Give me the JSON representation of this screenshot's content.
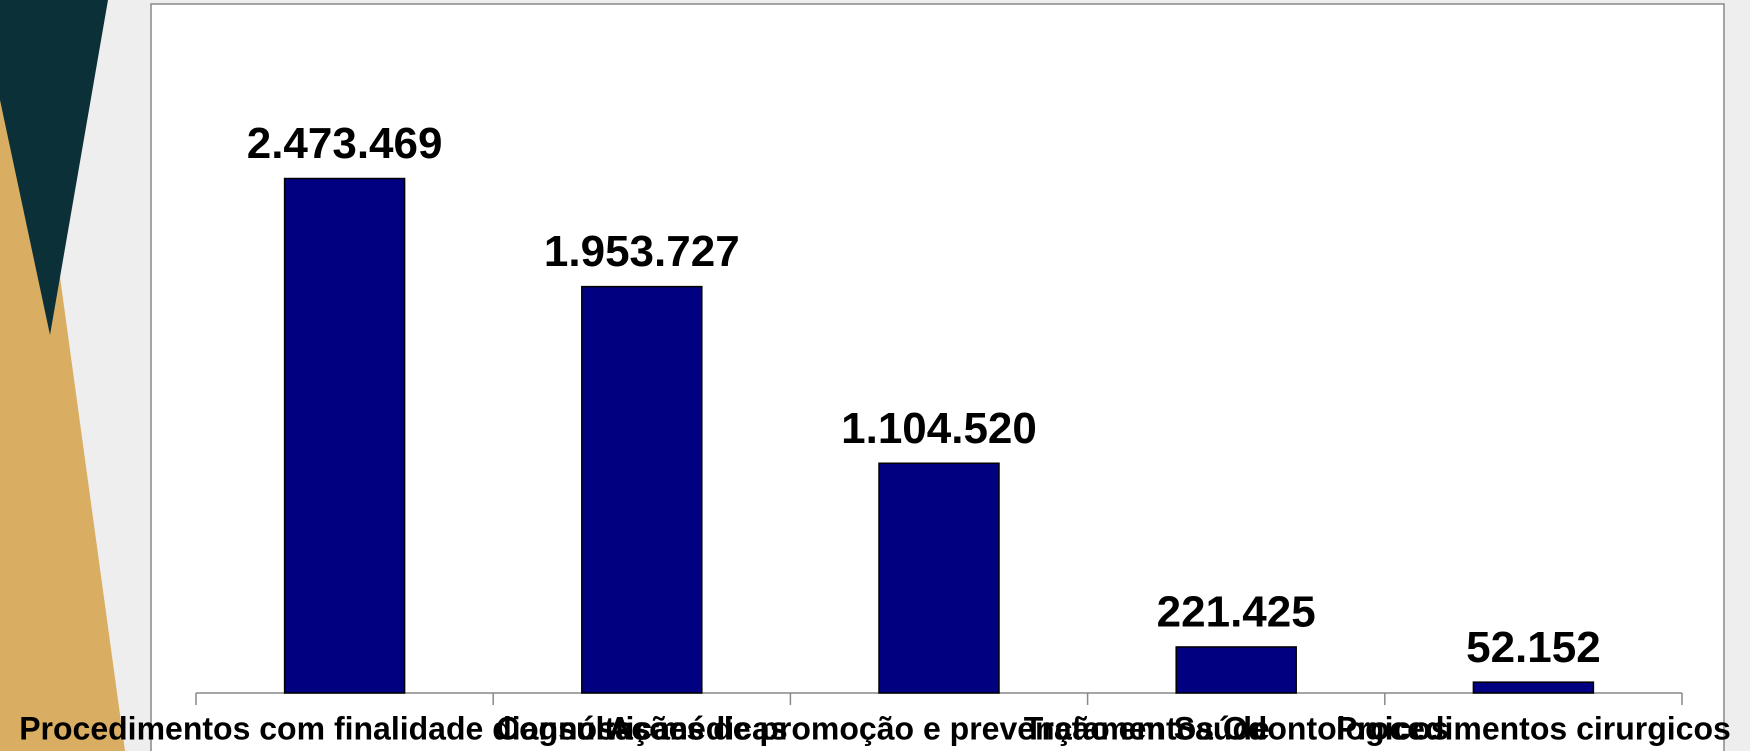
{
  "chart_data": {
    "type": "bar",
    "categories": [
      "Procedimentos com finalidade diagnóstica",
      "Consultas médicas",
      "Ações de promoção e prevenção em Saúde",
      "Tratamentos Odontologicos",
      "Procedimentos cirurgicos"
    ],
    "values": [
      2473469,
      1953727,
      1104520,
      221425,
      52152
    ],
    "value_labels": [
      "2.473.469",
      "1.953.727",
      "1.104.520",
      "221.425",
      "52.152"
    ],
    "color": "#000080",
    "ylim": [
      0,
      3000000
    ]
  }
}
